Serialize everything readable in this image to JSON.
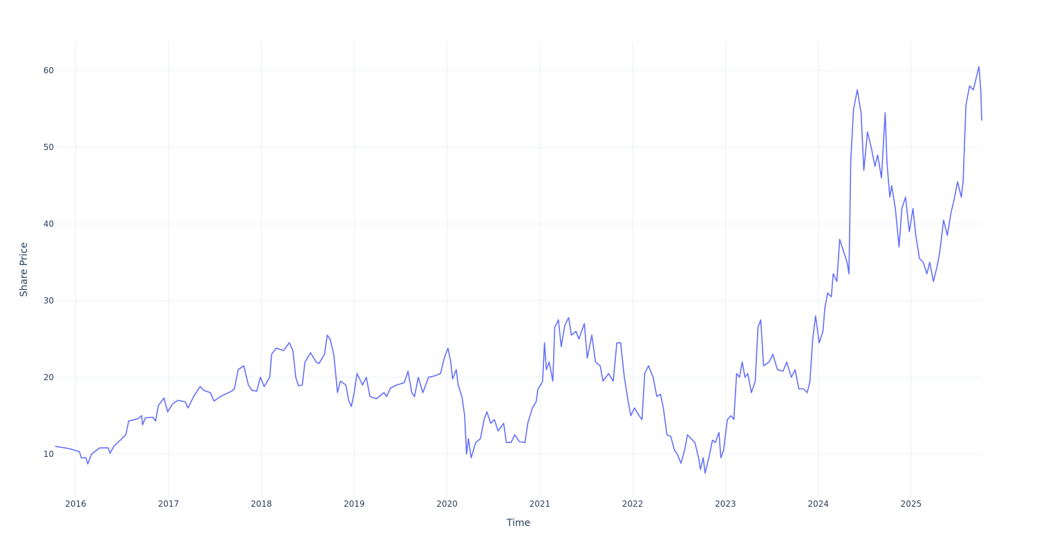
{
  "chart_data": {
    "type": "line",
    "title": "",
    "xlabel": "Time",
    "ylabel": "Share Price",
    "x_units": "decimal year",
    "xlim": [
      2015.78,
      2025.76
    ],
    "ylim": [
      4.3,
      63.8
    ],
    "grid": true,
    "legend": "none",
    "x_ticks": [
      {
        "value": 2016,
        "label": "2016"
      },
      {
        "value": 2017,
        "label": "2017"
      },
      {
        "value": 2018,
        "label": "2018"
      },
      {
        "value": 2019,
        "label": "2019"
      },
      {
        "value": 2020,
        "label": "2020"
      },
      {
        "value": 2021,
        "label": "2021"
      },
      {
        "value": 2022,
        "label": "2022"
      },
      {
        "value": 2023,
        "label": "2023"
      },
      {
        "value": 2024,
        "label": "2024"
      },
      {
        "value": 2025,
        "label": "2025"
      }
    ],
    "y_ticks": [
      {
        "value": 10,
        "label": "10"
      },
      {
        "value": 20,
        "label": "20"
      },
      {
        "value": 30,
        "label": "30"
      },
      {
        "value": 40,
        "label": "40"
      },
      {
        "value": 50,
        "label": "50"
      },
      {
        "value": 60,
        "label": "60"
      }
    ],
    "series": [
      {
        "name": "Share Price",
        "color": "#636efa",
        "x": [
          2015.78,
          2015.93,
          2016.04,
          2016.06,
          2016.11,
          2016.13,
          2016.17,
          2016.26,
          2016.35,
          2016.37,
          2016.41,
          2016.48,
          2016.54,
          2016.57,
          2016.67,
          2016.71,
          2016.72,
          2016.75,
          2016.83,
          2016.86,
          2016.89,
          2016.95,
          2016.99,
          2017.04,
          2017.1,
          2017.18,
          2017.21,
          2017.27,
          2017.34,
          2017.38,
          2017.45,
          2017.49,
          2017.56,
          2017.68,
          2017.71,
          2017.75,
          2017.81,
          2017.86,
          2017.9,
          2017.95,
          2017.99,
          2018.03,
          2018.09,
          2018.11,
          2018.16,
          2018.24,
          2018.3,
          2018.34,
          2018.37,
          2018.4,
          2018.44,
          2018.47,
          2018.53,
          2018.59,
          2018.62,
          2018.68,
          2018.71,
          2018.74,
          2018.78,
          2018.82,
          2018.85,
          2018.91,
          2018.94,
          2018.97,
          2019.0,
          2019.03,
          2019.09,
          2019.13,
          2019.17,
          2019.24,
          2019.32,
          2019.35,
          2019.39,
          2019.46,
          2019.54,
          2019.58,
          2019.62,
          2019.65,
          2019.69,
          2019.74,
          2019.8,
          2019.87,
          2019.93,
          2019.97,
          2020.01,
          2020.04,
          2020.06,
          2020.1,
          2020.12,
          2020.16,
          2020.19,
          2020.21,
          2020.23,
          2020.26,
          2020.31,
          2020.36,
          2020.4,
          2020.43,
          2020.47,
          2020.51,
          2020.55,
          2020.61,
          2020.64,
          2020.69,
          2020.73,
          2020.78,
          2020.84,
          2020.87,
          2020.92,
          2020.96,
          2020.98,
          2021.01,
          2021.03,
          2021.05,
          2021.07,
          2021.1,
          2021.14,
          2021.16,
          2021.2,
          2021.23,
          2021.27,
          2021.31,
          2021.34,
          2021.39,
          2021.42,
          2021.48,
          2021.51,
          2021.56,
          2021.6,
          2021.65,
          2021.68,
          2021.74,
          2021.79,
          2021.83,
          2021.87,
          2021.91,
          2021.95,
          2021.98,
          2022.02,
          2022.07,
          2022.1,
          2022.13,
          2022.17,
          2022.22,
          2022.26,
          2022.3,
          2022.33,
          2022.37,
          2022.41,
          2022.45,
          2022.48,
          2022.52,
          2022.56,
          2022.59,
          2022.63,
          2022.67,
          2022.71,
          2022.73,
          2022.76,
          2022.78,
          2022.82,
          2022.86,
          2022.89,
          2022.93,
          2022.95,
          2022.98,
          2023.02,
          2023.06,
          2023.09,
          2023.12,
          2023.15,
          2023.18,
          2023.21,
          2023.24,
          2023.28,
          2023.32,
          2023.35,
          2023.38,
          2023.41,
          2023.47,
          2023.51,
          2023.56,
          2023.62,
          2023.66,
          2023.71,
          2023.75,
          2023.79,
          2023.84,
          2023.88,
          2023.91,
          2023.94,
          2023.97,
          2024.01,
          2024.05,
          2024.07,
          2024.1,
          2024.14,
          2024.16,
          2024.2,
          2024.23,
          2024.27,
          2024.31,
          2024.33,
          2024.35,
          2024.38,
          2024.42,
          2024.46,
          2024.49,
          2024.53,
          2024.57,
          2024.61,
          2024.64,
          2024.68,
          2024.72,
          2024.74,
          2024.77,
          2024.79,
          2024.83,
          2024.87,
          2024.9,
          2024.94,
          2024.98,
          2025.02,
          2025.05,
          2025.09,
          2025.13,
          2025.17,
          2025.2,
          2025.24,
          2025.28,
          2025.31,
          2025.35,
          2025.39,
          2025.43,
          2025.46,
          2025.5,
          2025.54,
          2025.56,
          2025.59,
          2025.63,
          2025.67,
          2025.71,
          2025.73,
          2025.75,
          2025.76
        ],
        "y": [
          11,
          10.7,
          10.3,
          9.5,
          9.5,
          8.7,
          10.0,
          10.8,
          10.8,
          10.1,
          11.0,
          11.8,
          12.5,
          14.3,
          14.6,
          15.0,
          13.8,
          14.7,
          14.8,
          14.3,
          16.3,
          17.3,
          15.5,
          16.5,
          17.0,
          16.8,
          16.0,
          17.5,
          18.8,
          18.3,
          18.0,
          16.9,
          17.5,
          18.2,
          18.5,
          21.0,
          21.5,
          19.0,
          18.3,
          18.2,
          20.0,
          18.8,
          20.0,
          23.0,
          23.8,
          23.5,
          24.5,
          23.5,
          20.0,
          18.9,
          19.0,
          22.0,
          23.2,
          22.0,
          21.8,
          23.0,
          25.5,
          25.0,
          23.0,
          18.0,
          19.5,
          19.0,
          17.0,
          16.2,
          18.0,
          20.5,
          19.0,
          20.0,
          17.5,
          17.2,
          18.0,
          17.5,
          18.6,
          19.0,
          19.3,
          20.8,
          18.0,
          17.5,
          20.0,
          18.0,
          20.0,
          20.2,
          20.5,
          22.5,
          23.8,
          22.0,
          19.8,
          21.0,
          19.0,
          17.5,
          15.0,
          10.0,
          12.0,
          9.5,
          11.5,
          12.0,
          14.5,
          15.5,
          14.0,
          14.5,
          13.0,
          14.0,
          11.5,
          11.5,
          12.5,
          11.6,
          11.5,
          14.0,
          16.0,
          16.8,
          18.5,
          19.0,
          19.5,
          24.5,
          21.0,
          22.0,
          19.5,
          26.5,
          27.5,
          24.0,
          26.8,
          27.8,
          25.5,
          26.0,
          25.0,
          27.0,
          22.5,
          25.5,
          22.0,
          21.5,
          19.5,
          20.5,
          19.5,
          24.5,
          24.5,
          20.0,
          17.0,
          15.0,
          16.0,
          15.0,
          14.5,
          20.5,
          21.5,
          20.0,
          17.5,
          17.8,
          16.0,
          12.5,
          12.3,
          10.5,
          10.0,
          8.8,
          10.5,
          12.5,
          12.0,
          11.5,
          9.5,
          8.0,
          9.5,
          7.5,
          9.5,
          11.8,
          11.5,
          12.8,
          9.5,
          10.5,
          14.5,
          15.0,
          14.5,
          20.5,
          20.0,
          22.0,
          20.0,
          20.5,
          18.0,
          19.5,
          26.5,
          27.5,
          21.5,
          22.0,
          23.0,
          21.0,
          20.8,
          22.0,
          20.0,
          21.0,
          18.5,
          18.5,
          18.0,
          19.5,
          25.0,
          28.0,
          24.5,
          26.0,
          29.0,
          31.0,
          30.5,
          33.5,
          32.5,
          38.0,
          36.5,
          35.0,
          33.5,
          48.5,
          55.0,
          57.5,
          54.5,
          47.0,
          52.0,
          50.0,
          47.5,
          49.0,
          46.0,
          54.5,
          48.0,
          43.5,
          45.0,
          42.0,
          37.0,
          42.0,
          43.5,
          39.0,
          42.0,
          38.5,
          35.5,
          35.0,
          33.5,
          35.0,
          32.5,
          34.5,
          36.5,
          40.5,
          38.5,
          41.5,
          43.0,
          45.5,
          43.5,
          45.5,
          55.5,
          58.0,
          57.5,
          59.5,
          60.5,
          57.5,
          53.5
        ]
      }
    ]
  }
}
